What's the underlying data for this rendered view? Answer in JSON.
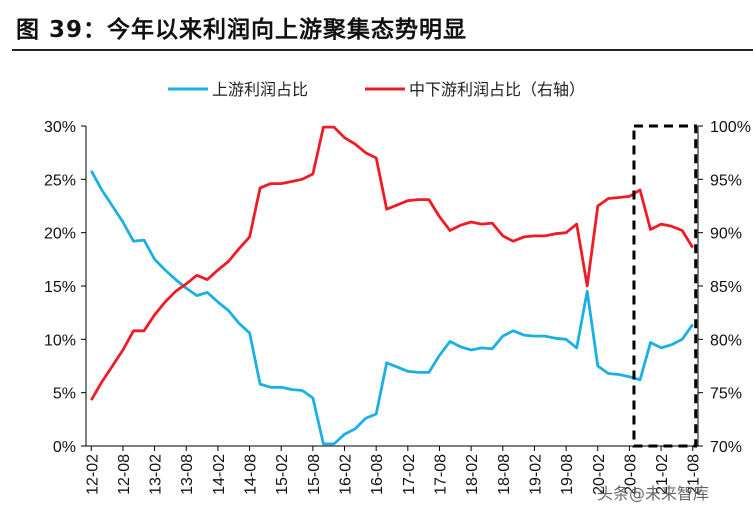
{
  "figure_title": "图 39：今年以来利润向上游聚集态势明显",
  "watermark": "头条@未来智库",
  "colors": {
    "upstream": "#1BB0E5",
    "midstream": "#EE1C25"
  },
  "chart_data": {
    "type": "line",
    "title": "",
    "x": [
      "12-02",
      "12-04",
      "12-06",
      "12-08",
      "12-10",
      "12-12",
      "13-02",
      "13-04",
      "13-06",
      "13-08",
      "13-10",
      "13-12",
      "14-02",
      "14-04",
      "14-06",
      "14-08",
      "14-10",
      "14-12",
      "15-02",
      "15-04",
      "15-06",
      "15-08",
      "15-10",
      "15-12",
      "16-02",
      "16-04",
      "16-06",
      "16-08",
      "16-10",
      "16-12",
      "17-02",
      "17-04",
      "17-06",
      "17-08",
      "17-10",
      "17-12",
      "18-02",
      "18-04",
      "18-06",
      "18-08",
      "18-10",
      "18-12",
      "19-02",
      "19-04",
      "19-06",
      "19-08",
      "19-10",
      "19-12",
      "20-02",
      "20-04",
      "20-06",
      "20-08",
      "20-10",
      "20-12",
      "21-02",
      "21-04",
      "21-06",
      "21-08"
    ],
    "x_tick_labels": [
      "12-02",
      "12-08",
      "13-02",
      "13-08",
      "14-02",
      "14-08",
      "15-02",
      "15-08",
      "16-02",
      "16-08",
      "17-02",
      "17-08",
      "18-02",
      "18-08",
      "19-02",
      "19-08",
      "20-02",
      "20-08",
      "21-02",
      "21-08"
    ],
    "left_axis": {
      "ylim": [
        0,
        30
      ],
      "ticks": [
        "0%",
        "5%",
        "10%",
        "15%",
        "20%",
        "25%",
        "30%"
      ]
    },
    "right_axis": {
      "ylim": [
        70,
        100
      ],
      "ticks": [
        "70%",
        "75%",
        "80%",
        "85%",
        "90%",
        "95%",
        "100%"
      ]
    },
    "series": [
      {
        "name": "上游利润占比",
        "axis": "left",
        "color": "#1BB0E5",
        "values": [
          25.8,
          24.0,
          22.5,
          21.0,
          19.2,
          19.3,
          17.5,
          16.5,
          15.6,
          14.8,
          14.1,
          14.4,
          13.5,
          12.7,
          11.5,
          10.6,
          5.8,
          5.5,
          5.5,
          5.3,
          5.2,
          4.5,
          0.2,
          0.2,
          1.1,
          1.6,
          2.6,
          3.0,
          7.8,
          7.4,
          7.0,
          6.9,
          6.9,
          8.5,
          9.8,
          9.3,
          9.0,
          9.2,
          9.1,
          10.3,
          10.8,
          10.4,
          10.3,
          10.3,
          10.1,
          10.0,
          9.2,
          14.5,
          7.5,
          6.8,
          6.7,
          6.5,
          6.2,
          9.7,
          9.2,
          9.5,
          10.0,
          11.4
        ]
      },
      {
        "name": "中下游利润占比（右轴）",
        "axis": "right",
        "color": "#EE1C25",
        "values": [
          74.3,
          76.0,
          77.5,
          79.0,
          80.8,
          80.8,
          82.3,
          83.5,
          84.5,
          85.2,
          86.0,
          85.6,
          86.5,
          87.3,
          88.5,
          89.6,
          94.2,
          94.6,
          94.6,
          94.8,
          95.0,
          95.5,
          99.9,
          99.9,
          98.9,
          98.3,
          97.5,
          97.0,
          92.2,
          92.6,
          93.0,
          93.1,
          93.1,
          91.5,
          90.2,
          90.7,
          91.0,
          90.8,
          90.9,
          89.7,
          89.2,
          89.6,
          89.7,
          89.7,
          89.9,
          90.0,
          90.8,
          85.0,
          92.5,
          93.2,
          93.3,
          93.4,
          94.0,
          90.3,
          90.8,
          90.6,
          90.2,
          88.6
        ]
      }
    ],
    "highlight_box": {
      "from": "20-10",
      "to": "21-08",
      "style": "dashed"
    },
    "legend_position": "top-center",
    "grid": false
  }
}
